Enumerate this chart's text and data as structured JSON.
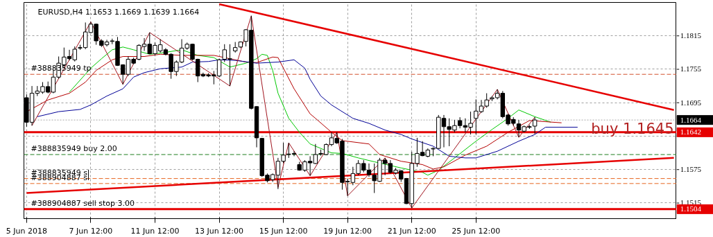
{
  "chart_data": {
    "type": "candlestick",
    "title": "EURUSD,H4  1.1653 1.1669 1.1639 1.1664",
    "categories": [
      "5 Jun 2018",
      null,
      null,
      null,
      null,
      null,
      null,
      null,
      null,
      null,
      null,
      null,
      "7 Jun 12:00",
      null,
      null,
      null,
      null,
      null,
      null,
      null,
      null,
      null,
      null,
      null,
      "11 Jun 12:00",
      null,
      null,
      null,
      null,
      null,
      null,
      null,
      null,
      null,
      null,
      null,
      "13 Jun 12:00",
      null,
      null,
      null,
      null,
      null,
      null,
      null,
      null,
      null,
      null,
      null,
      "15 Jun 12:00",
      null,
      null,
      null,
      null,
      null,
      null,
      null,
      null,
      null,
      null,
      null,
      "19 Jun 12:00",
      null,
      null,
      null,
      null,
      null,
      null,
      null,
      null,
      null,
      null,
      null,
      "21 Jun 12:00",
      null,
      null,
      null,
      null,
      null,
      null,
      null,
      null,
      null,
      null,
      null,
      "25 Jun 12:00",
      null,
      null,
      null,
      null,
      null,
      null,
      null,
      null,
      null,
      null,
      null,
      null,
      null,
      null,
      null,
      null,
      null,
      null,
      null,
      null,
      null,
      null,
      null,
      null,
      null,
      null,
      null,
      null,
      null,
      null,
      null,
      null,
      null,
      null,
      null,
      null,
      null
    ],
    "ohlc": [
      [
        1.1704,
        1.171,
        1.1652,
        1.166
      ],
      [
        1.166,
        1.1725,
        1.1654,
        1.1712
      ],
      [
        1.1712,
        1.1725,
        1.1707,
        1.1716
      ],
      [
        1.1714,
        1.1732,
        1.1711,
        1.1724
      ],
      [
        1.1724,
        1.1733,
        1.1712,
        1.1714
      ],
      [
        1.1714,
        1.1753,
        1.1712,
        1.1741
      ],
      [
        1.1741,
        1.1778,
        1.1738,
        1.1766
      ],
      [
        1.1763,
        1.1794,
        1.1757,
        1.1777
      ],
      [
        1.1778,
        1.179,
        1.1771,
        1.1774
      ],
      [
        1.1772,
        1.1796,
        1.1769,
        1.1791
      ],
      [
        1.1793,
        1.1799,
        1.179,
        1.1794
      ],
      [
        1.1794,
        1.1839,
        1.1791,
        1.1822
      ],
      [
        1.1821,
        1.184,
        1.182,
        1.1836
      ],
      [
        1.1836,
        1.1837,
        1.1799,
        1.1806
      ],
      [
        1.1806,
        1.1809,
        1.1795,
        1.1798
      ],
      [
        1.1799,
        1.1808,
        1.1796,
        1.1804
      ],
      [
        1.1805,
        1.181,
        1.18,
        1.1806
      ],
      [
        1.1805,
        1.1813,
        1.1761,
        1.1762
      ],
      [
        1.1763,
        1.1764,
        1.1728,
        1.1746
      ],
      [
        1.1746,
        1.1778,
        1.1743,
        1.1773
      ],
      [
        1.1773,
        1.1776,
        1.1764,
        1.1766
      ],
      [
        1.1773,
        1.18,
        1.1771,
        1.1798
      ],
      [
        1.1796,
        1.1811,
        1.1788,
        1.18
      ],
      [
        1.18,
        1.1821,
        1.1782,
        1.1783
      ],
      [
        1.1783,
        1.1803,
        1.178,
        1.1798
      ],
      [
        1.1788,
        1.1809,
        1.1785,
        1.1799
      ],
      [
        1.179,
        1.1793,
        1.178,
        1.1782
      ],
      [
        1.1782,
        1.1784,
        1.1738,
        1.1751
      ],
      [
        1.1751,
        1.1771,
        1.1743,
        1.1768
      ],
      [
        1.1768,
        1.1809,
        1.1766,
        1.1793
      ],
      [
        1.1793,
        1.1803,
        1.179,
        1.18
      ],
      [
        1.18,
        1.1801,
        1.1771,
        1.1773
      ],
      [
        1.1773,
        1.1774,
        1.1732,
        1.1743
      ],
      [
        1.1746,
        1.1749,
        1.1741,
        1.1743
      ],
      [
        1.1745,
        1.1748,
        1.1741,
        1.1743
      ],
      [
        1.1745,
        1.1752,
        1.1728,
        1.1743
      ],
      [
        1.1743,
        1.1774,
        1.1741,
        1.1772
      ],
      [
        1.1773,
        1.18,
        1.1768,
        1.179
      ],
      [
        1.1773,
        1.18,
        1.1725,
        1.1774
      ],
      [
        1.1788,
        1.1804,
        1.1785,
        1.1794
      ],
      [
        1.1795,
        1.1805,
        1.1793,
        1.1804
      ],
      [
        1.1805,
        1.1827,
        1.1796,
        1.1826
      ],
      [
        1.1825,
        1.1851,
        1.1683,
        1.1685
      ],
      [
        1.1688,
        1.1689,
        1.1615,
        1.1632
      ],
      [
        1.1631,
        1.1632,
        1.1562,
        1.1564
      ],
      [
        1.1565,
        1.1568,
        1.1552,
        1.1555
      ],
      [
        1.1557,
        1.1568,
        1.1553,
        1.1566
      ],
      [
        1.1565,
        1.1596,
        1.154,
        1.159
      ],
      [
        1.159,
        1.1623,
        1.1587,
        1.1601
      ],
      [
        1.1602,
        1.1623,
        1.1596,
        1.1603
      ],
      [
        1.1604,
        1.1608,
        1.1599,
        1.1603
      ],
      [
        1.1584,
        1.1589,
        1.1573,
        1.1574
      ],
      [
        1.1574,
        1.1592,
        1.1571,
        1.1589
      ],
      [
        1.159,
        1.1599,
        1.1564,
        1.1587
      ],
      [
        1.1586,
        1.1621,
        1.1585,
        1.1602
      ],
      [
        1.1604,
        1.1611,
        1.16,
        1.1603
      ],
      [
        1.1602,
        1.1622,
        1.1601,
        1.162
      ],
      [
        1.162,
        1.1642,
        1.1617,
        1.1632
      ],
      [
        1.1631,
        1.1642,
        1.1621,
        1.1623
      ],
      [
        1.1626,
        1.163,
        1.1539,
        1.1552
      ],
      [
        1.1553,
        1.1559,
        1.1528,
        1.1554
      ],
      [
        1.1552,
        1.158,
        1.1547,
        1.1568
      ],
      [
        1.1568,
        1.1592,
        1.1565,
        1.1586
      ],
      [
        1.1586,
        1.1592,
        1.157,
        1.1574
      ],
      [
        1.1574,
        1.1586,
        1.1562,
        1.1566
      ],
      [
        1.1565,
        1.1586,
        1.1533,
        1.1555
      ],
      [
        1.1554,
        1.1596,
        1.1553,
        1.1592
      ],
      [
        1.1592,
        1.1596,
        1.1565,
        1.1586
      ],
      [
        1.1586,
        1.1592,
        1.1568,
        1.157
      ],
      [
        1.1569,
        1.1578,
        1.1566,
        1.1574
      ],
      [
        1.1573,
        1.1574,
        1.1553,
        1.1558
      ],
      [
        1.1559,
        1.156,
        1.1513,
        1.1514
      ],
      [
        1.1514,
        1.1607,
        1.1506,
        1.1586
      ],
      [
        1.1586,
        1.1632,
        1.158,
        1.1604
      ],
      [
        1.1606,
        1.1626,
        1.1599,
        1.16
      ],
      [
        1.1599,
        1.1613,
        1.1597,
        1.161
      ],
      [
        1.1612,
        1.1615,
        1.1599,
        1.1613
      ],
      [
        1.1613,
        1.1673,
        1.1612,
        1.1669
      ],
      [
        1.1667,
        1.1673,
        1.1615,
        1.1652
      ],
      [
        1.1652,
        1.1667,
        1.1617,
        1.1647
      ],
      [
        1.1646,
        1.1664,
        1.1642,
        1.1654
      ],
      [
        1.1663,
        1.1669,
        1.1649,
        1.1654
      ],
      [
        1.1654,
        1.1667,
        1.1642,
        1.1651
      ],
      [
        1.1651,
        1.1679,
        1.1638,
        1.1658
      ],
      [
        1.1667,
        1.1701,
        1.1638,
        1.168
      ],
      [
        1.1679,
        1.17,
        1.1677,
        1.1689
      ],
      [
        1.1689,
        1.1712,
        1.1686,
        1.17
      ],
      [
        1.1702,
        1.1707,
        1.1698,
        1.1704
      ],
      [
        1.1704,
        1.1719,
        1.1701,
        1.1712
      ],
      [
        1.1712,
        1.1716,
        1.1667,
        1.167
      ],
      [
        1.1673,
        1.1675,
        1.1654,
        1.1657
      ],
      [
        1.1665,
        1.1669,
        1.1654,
        1.1658
      ],
      [
        1.1657,
        1.1664,
        1.1633,
        1.1646
      ],
      [
        1.1644,
        1.1654,
        1.1642,
        1.1652
      ],
      [
        1.1652,
        1.1655,
        1.1648,
        1.1651
      ],
      [
        1.1653,
        1.1669,
        1.1639,
        1.1664
      ],
      null,
      null,
      null,
      null,
      null,
      null,
      null,
      null,
      null,
      null,
      null,
      null,
      null,
      null,
      null,
      null,
      null,
      null,
      null,
      null,
      null,
      null,
      null,
      null,
      null,
      null
    ],
    "series": [
      {
        "type": "line",
        "color": "#00c800",
        "values": [
          null,
          null,
          null,
          null,
          null,
          null,
          null,
          null,
          1.1714,
          null,
          null,
          null,
          1.1757,
          null,
          1.1774,
          null,
          1.179,
          null,
          1.1795,
          null,
          1.179,
          null,
          null,
          1.1782,
          null,
          1.1784,
          null,
          null,
          null,
          1.179,
          null,
          null,
          1.178,
          null,
          null,
          1.1776,
          null,
          null,
          1.1759,
          null,
          null,
          1.1766,
          null,
          1.1774,
          1.1782,
          1.178,
          1.1753,
          1.1712,
          null,
          1.1667,
          null,
          1.1642,
          null,
          1.1621,
          null,
          null,
          null,
          1.1605,
          null,
          1.1604,
          null,
          null,
          1.1596,
          null,
          null,
          1.1589,
          null,
          null,
          null,
          null,
          1.1578,
          null,
          null,
          null,
          1.157,
          1.1565,
          null,
          1.1574,
          null,
          null,
          1.1596,
          null,
          null,
          null,
          1.1626,
          null,
          null,
          1.1647,
          null,
          null,
          1.1667,
          null,
          1.1682,
          null,
          null,
          1.167,
          null,
          null,
          1.166,
          null,
          null,
          null,
          null,
          null,
          null,
          null,
          null,
          null,
          null,
          null,
          null,
          null,
          null,
          null,
          null,
          null,
          null,
          null,
          null,
          null,
          null,
          null
        ]
      },
      {
        "type": "line",
        "color": "#b40000",
        "values": [
          1.1679,
          null,
          null,
          null,
          1.17,
          null,
          null,
          null,
          1.1712,
          null,
          null,
          1.1732,
          null,
          1.1753,
          null,
          null,
          1.1772,
          null,
          1.1778,
          null,
          null,
          null,
          1.1778,
          null,
          null,
          1.1782,
          null,
          null,
          null,
          1.178,
          null,
          null,
          null,
          null,
          null,
          1.178,
          null,
          null,
          1.1774,
          null,
          null,
          1.1768,
          null,
          1.1767,
          null,
          null,
          1.1777,
          1.1776,
          1.1757,
          null,
          1.172,
          null,
          null,
          1.1675,
          1.1667,
          null,
          null,
          1.1642,
          null,
          1.1627,
          null,
          null,
          null,
          null,
          1.1621,
          null,
          1.1602,
          null,
          null,
          null,
          1.159,
          null,
          null,
          null,
          1.1584,
          null,
          1.1576,
          null,
          1.158,
          null,
          null,
          null,
          1.1601,
          null,
          null,
          null,
          1.1617,
          null,
          null,
          null,
          1.1642,
          null,
          null,
          null,
          1.1663,
          null,
          null,
          null,
          null,
          null,
          1.1659,
          null,
          null,
          null,
          null,
          null,
          null,
          null,
          null,
          null,
          null,
          null,
          null,
          null,
          null,
          null,
          null,
          null,
          null,
          null,
          null,
          null
        ]
      },
      {
        "type": "line",
        "color": "#000096",
        "values": [
          null,
          null,
          1.167,
          null,
          null,
          null,
          1.1679,
          null,
          null,
          null,
          1.1683,
          null,
          1.1691,
          null,
          null,
          1.1707,
          null,
          null,
          1.172,
          null,
          1.1741,
          null,
          1.1749,
          null,
          null,
          1.1756,
          null,
          null,
          null,
          1.1759,
          null,
          1.1768,
          null,
          null,
          1.1769,
          null,
          1.1772,
          null,
          null,
          1.1771,
          null,
          null,
          null,
          1.1766,
          null,
          null,
          null,
          1.1768,
          null,
          null,
          1.1772,
          null,
          1.1757,
          1.1737,
          null,
          1.1707,
          null,
          1.1691,
          null,
          null,
          null,
          1.1667,
          null,
          null,
          1.1658,
          null,
          null,
          1.1646,
          null,
          null,
          1.1638,
          null,
          1.163,
          null,
          null,
          null,
          1.1617,
          null,
          null,
          1.1599,
          null,
          null,
          1.1596,
          null,
          1.1596,
          null,
          null,
          null,
          1.1608,
          null,
          null,
          null,
          1.1626,
          null,
          null,
          1.1638,
          null,
          1.1651,
          null,
          null,
          null,
          null,
          null,
          1.1651,
          null,
          null,
          null,
          null,
          null,
          null,
          null,
          null,
          null,
          null,
          null,
          null,
          null,
          null,
          null,
          null,
          null,
          null
        ]
      },
      {
        "type": "line",
        "color": "#a0141e",
        "values": [
          null,
          1.1654,
          null,
          null,
          null,
          null,
          null,
          null,
          null,
          null,
          null,
          null,
          1.184,
          null,
          null,
          null,
          null,
          null,
          1.1728,
          null,
          null,
          null,
          null,
          1.1821,
          null,
          null,
          null,
          null,
          null,
          null,
          null,
          null,
          null,
          null,
          null,
          null,
          null,
          null,
          1.1725,
          null,
          null,
          null,
          1.1851,
          null,
          null,
          null,
          null,
          1.1543,
          null,
          1.1623,
          null,
          null,
          null,
          1.1564,
          null,
          null,
          null,
          null,
          1.1642,
          null,
          1.1528,
          null,
          null,
          null,
          null,
          null,
          null,
          1.1596,
          null,
          null,
          null,
          null,
          1.1506,
          null,
          null,
          null,
          null,
          null,
          null,
          null,
          null,
          null,
          null,
          null,
          null,
          null,
          null,
          null,
          1.1719,
          null,
          null,
          null,
          1.1633,
          null,
          null,
          1.1669,
          null,
          null,
          null,
          null,
          null,
          null,
          null,
          null,
          null,
          null,
          null,
          null,
          null,
          null,
          null,
          null,
          null,
          null,
          null,
          null,
          null,
          null,
          null,
          null,
          null,
          null
        ]
      },
      {
        "type": "line",
        "color": "#e60000",
        "values": [
          null,
          null,
          null,
          null,
          null,
          null,
          null,
          null,
          null,
          null,
          null,
          null,
          null,
          null,
          null,
          null,
          null,
          null,
          null,
          null,
          null,
          null,
          null,
          null,
          null,
          null,
          null,
          null,
          null,
          null,
          null,
          null,
          null,
          null,
          null,
          null,
          1.1872,
          null,
          null,
          null,
          null,
          null,
          null,
          null,
          null,
          null,
          null,
          null,
          null,
          null,
          null,
          null,
          null,
          null,
          null,
          null,
          null,
          null,
          null,
          null,
          null,
          null,
          null,
          null,
          null,
          null,
          null,
          null,
          null,
          null,
          null,
          null,
          null,
          null,
          null,
          null,
          null,
          null,
          null,
          null,
          null,
          null,
          null,
          null,
          null,
          null,
          null,
          null,
          null,
          null,
          null,
          null,
          null,
          null,
          null,
          null,
          null,
          null,
          null,
          null,
          null,
          null,
          null,
          null,
          null,
          null,
          null,
          null,
          null,
          null,
          null,
          null,
          null,
          null,
          null,
          null,
          null,
          null,
          null,
          null,
          null,
          1.1682
        ]
      },
      {
        "type": "line",
        "color": "#e60000",
        "values": [
          1.1533,
          null,
          null,
          null,
          null,
          null,
          null,
          null,
          null,
          null,
          null,
          null,
          null,
          null,
          null,
          null,
          null,
          null,
          null,
          null,
          null,
          null,
          null,
          null,
          null,
          null,
          null,
          null,
          null,
          null,
          null,
          null,
          null,
          null,
          null,
          null,
          null,
          null,
          null,
          null,
          null,
          null,
          null,
          null,
          null,
          null,
          null,
          null,
          null,
          null,
          null,
          null,
          null,
          null,
          null,
          null,
          null,
          null,
          null,
          null,
          null,
          null,
          null,
          null,
          null,
          null,
          null,
          null,
          null,
          null,
          null,
          null,
          null,
          null,
          null,
          null,
          null,
          null,
          null,
          null,
          null,
          null,
          null,
          null,
          null,
          null,
          null,
          null,
          null,
          null,
          null,
          null,
          null,
          null,
          null,
          null,
          null,
          null,
          null,
          null,
          null,
          null,
          null,
          null,
          null,
          null,
          null,
          null,
          null,
          null,
          null,
          null,
          null,
          null,
          null,
          null,
          null,
          null,
          null,
          null,
          null,
          1.1596
        ]
      }
    ],
    "ref_lines": [
      {
        "axis": "y",
        "value": 1.1664,
        "label": "1.1664",
        "color": "#000000",
        "line_style": "dotted"
      },
      {
        "axis": "y",
        "value": 1.1746,
        "label": "#388835949 tp",
        "color": "#d2502d",
        "line_style": "dashed"
      },
      {
        "axis": "y",
        "value": 1.1602,
        "label": "#388835949 buy 2.00",
        "color": "#1e7d1e",
        "line_style": "dashed"
      },
      {
        "axis": "y",
        "value": 1.1559,
        "label": "#388835949 sl",
        "color": "#e6641e",
        "line_style": "dashed"
      },
      {
        "axis": "y",
        "value": 1.155,
        "label": "#388904887 sl",
        "color": "#e6641e",
        "line_style": "dashed"
      },
      {
        "axis": "y",
        "value": 1.1504,
        "label": "#388904887 sell stop 3.00",
        "color": "#1e7d1e",
        "line_style": "dashed"
      },
      {
        "axis": "y",
        "value": 1.1642,
        "label": "1.1642",
        "color": "#e60000",
        "line_style": "solid"
      },
      {
        "axis": "y",
        "value": 1.1504,
        "label": "1.1504",
        "color": "#e60000",
        "line_style": "solid"
      }
    ],
    "annotations": [
      {
        "text": "buy 1.1645",
        "y": 1.1645
      }
    ],
    "ylim": [
      1.1487,
      1.1875
    ],
    "yticks": [
      1.1815,
      1.1755,
      1.1695,
      {
        "value": 1.1635,
        "label": null
      },
      1.1575,
      1.1515
    ],
    "grid": true
  }
}
